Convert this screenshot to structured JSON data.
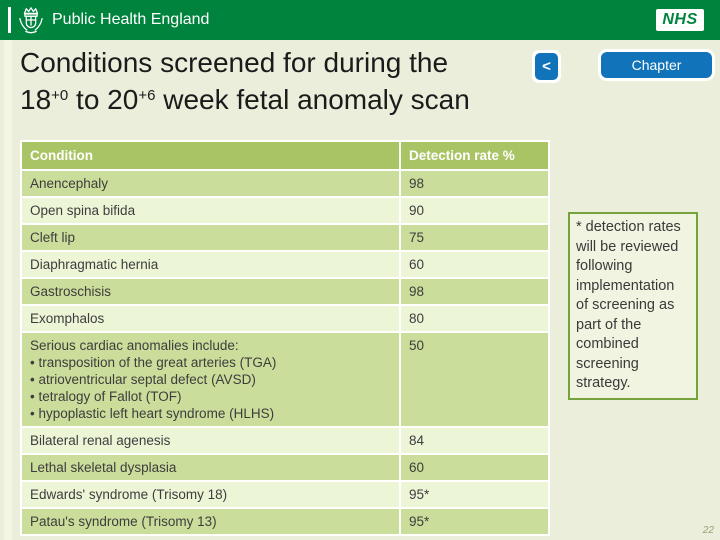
{
  "header": {
    "org_name": "Public Health England",
    "nhs_label": "NHS"
  },
  "title": {
    "line1": "Conditions screened for during the",
    "line2_pre": "18",
    "line2_sup1": "+0",
    "line2_mid": " to 20",
    "line2_sup2": "+6",
    "line2_post": " week fetal anomaly scan"
  },
  "nav": {
    "back_label": "<",
    "chapter_label": "Chapter"
  },
  "table": {
    "columns": [
      "Condition",
      "Detection rate %"
    ],
    "bullet_prefix": "• ",
    "rows": [
      {
        "condition": "Anencephaly",
        "rate": "98"
      },
      {
        "condition": "Open spina bifida",
        "rate": "90"
      },
      {
        "condition": "Cleft lip",
        "rate": "75"
      },
      {
        "condition": "Diaphragmatic hernia",
        "rate": "60"
      },
      {
        "condition": "Gastroschisis",
        "rate": "98"
      },
      {
        "condition": "Exomphalos",
        "rate": "80"
      },
      {
        "condition": "Serious cardiac anomalies include:",
        "bullets": [
          "transposition of the great arteries (TGA)",
          "atrioventricular septal defect (AVSD)",
          "tetralogy of Fallot (TOF)",
          "hypoplastic left heart syndrome (HLHS)"
        ],
        "rate": "50"
      },
      {
        "condition": "Bilateral renal agenesis",
        "rate": "84"
      },
      {
        "condition": "Lethal skeletal dysplasia",
        "rate": "60"
      },
      {
        "condition": "Edwards' syndrome (Trisomy 18)",
        "rate": "95*"
      },
      {
        "condition": "Patau's syndrome (Trisomy 13)",
        "rate": "95*"
      }
    ]
  },
  "note_box": {
    "text": "* detection rates will be reviewed following implementation of screening as part of the combined screening strategy."
  },
  "page_number": "22",
  "colors": {
    "header_bar_green": "#00843d",
    "slide_background": "#eaeeda",
    "table_header_green": "#a9c465",
    "row_green_dark": "#cbdd9a",
    "row_green_light": "#edf5d7",
    "button_blue": "#1173b9",
    "note_border_green": "#74a23d",
    "note_background": "#f0f4e1"
  }
}
